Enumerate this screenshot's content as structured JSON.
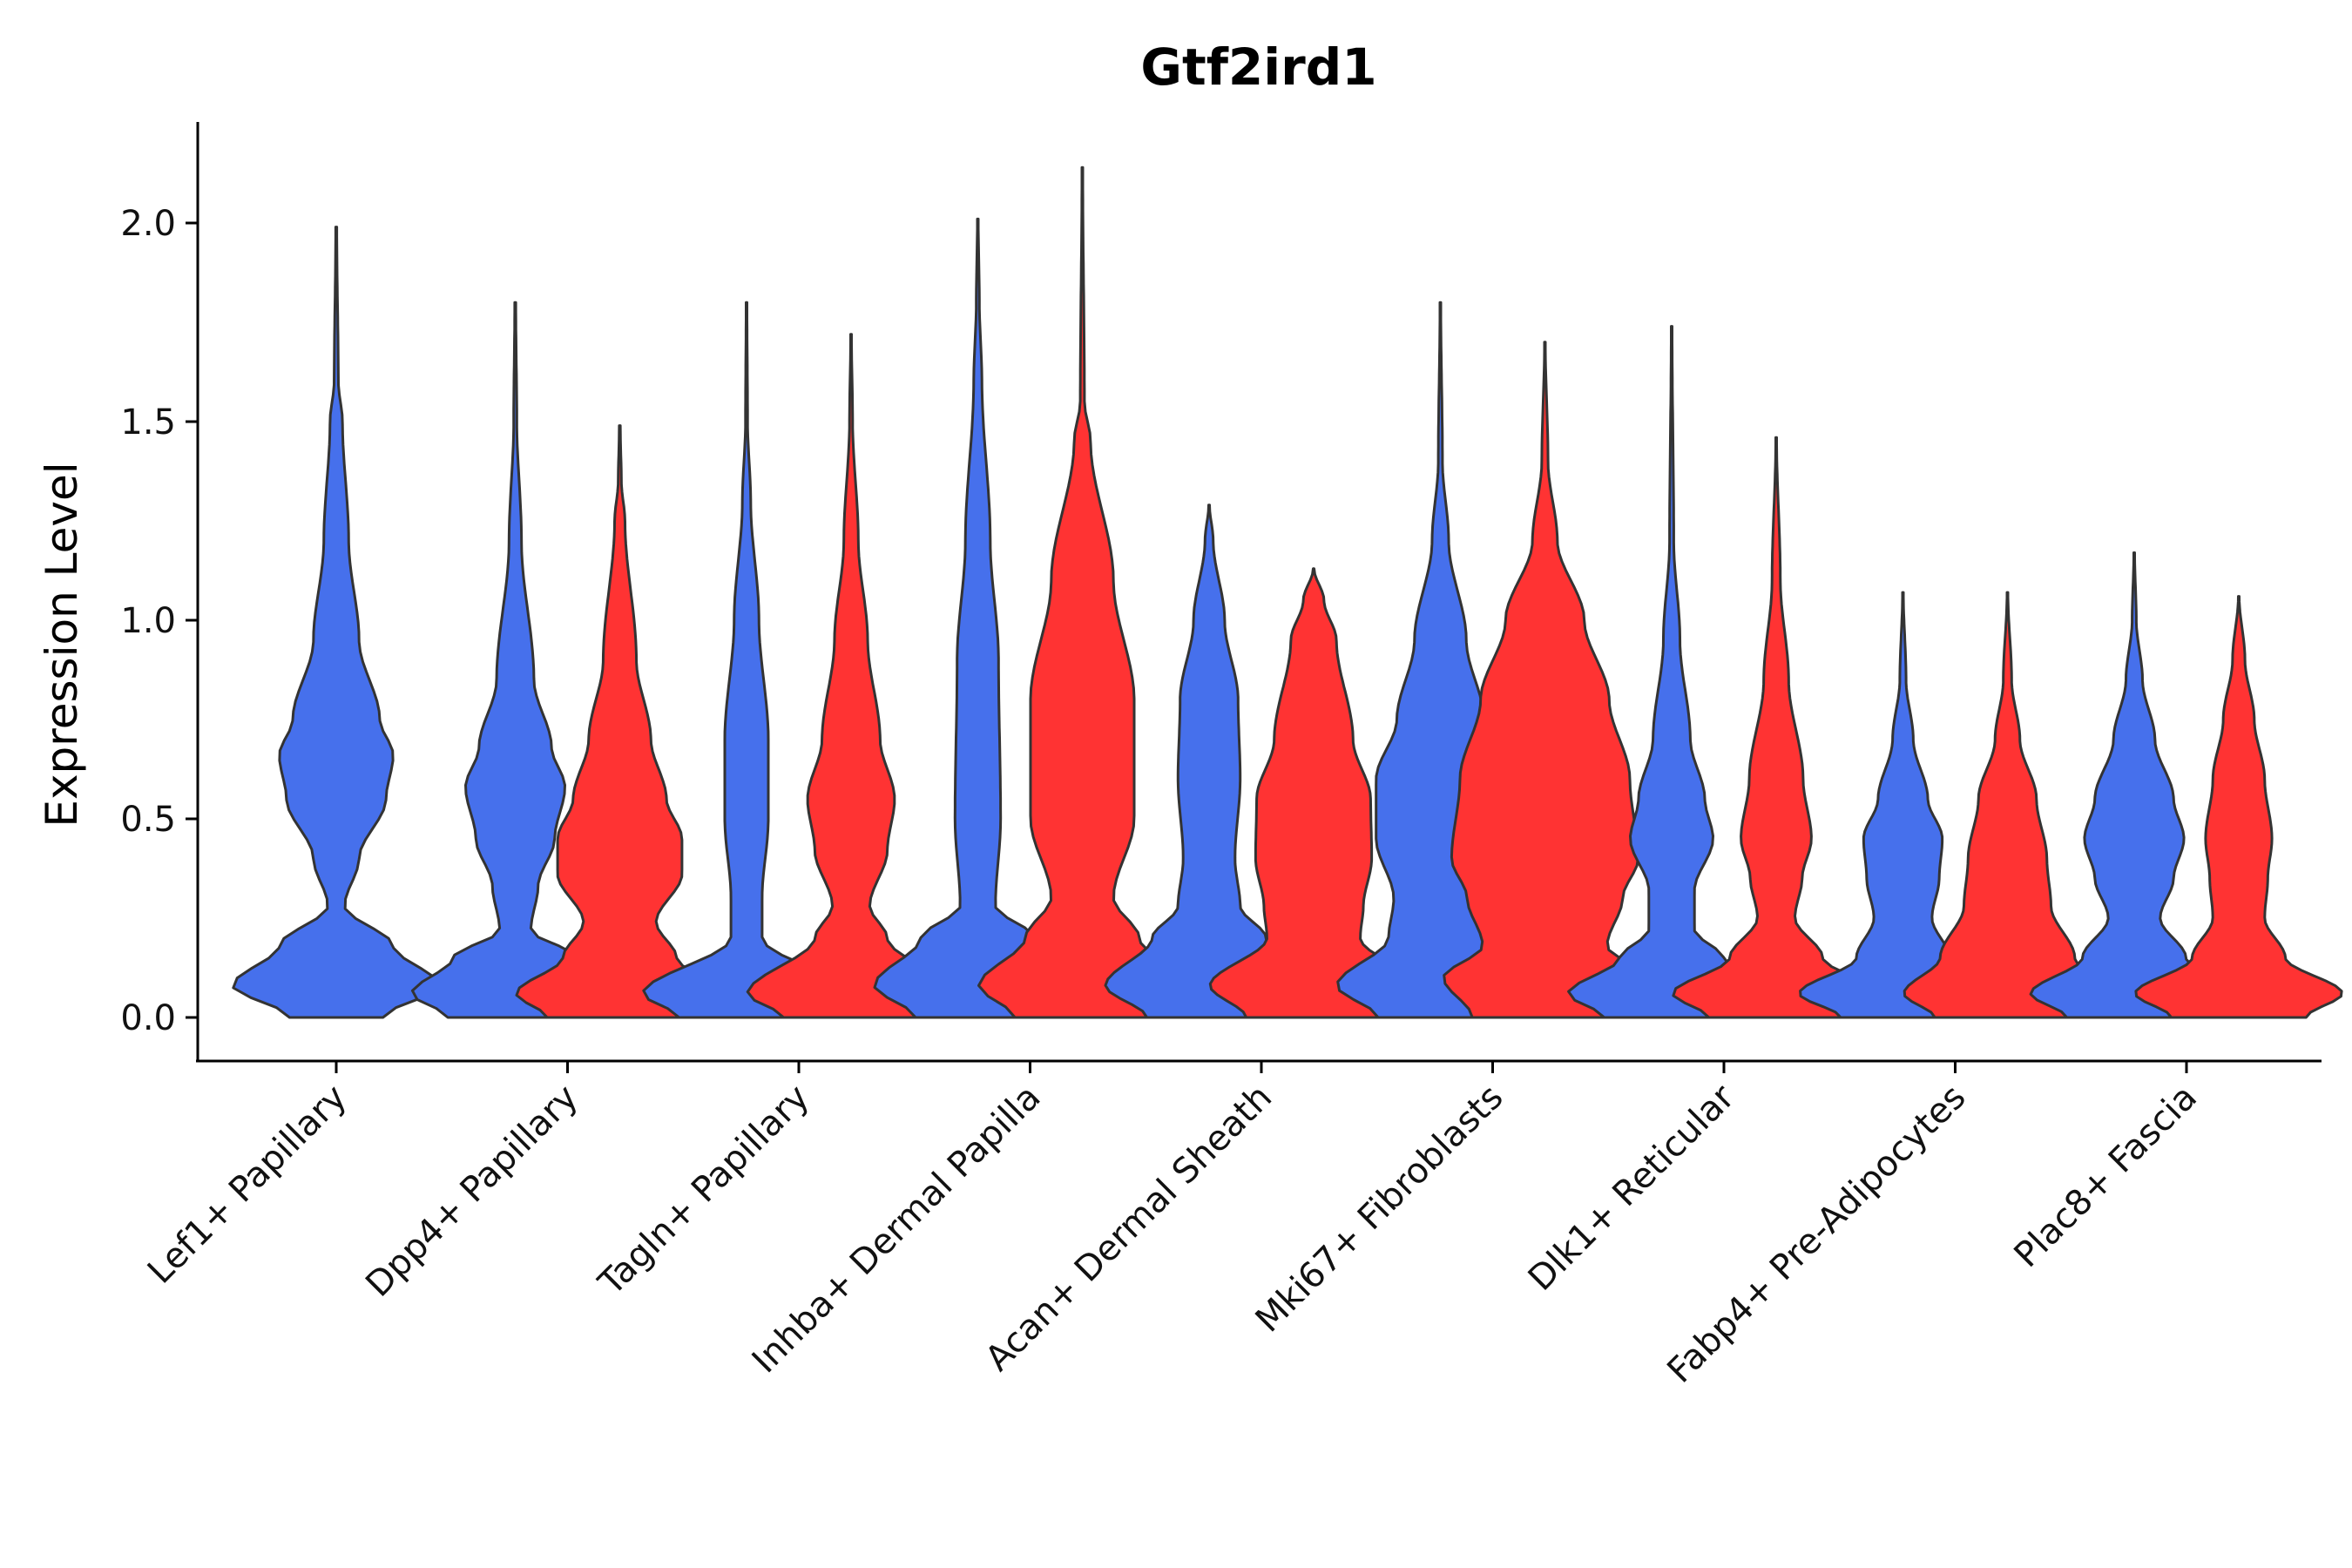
{
  "chart_data": {
    "type": "violin",
    "title": "Gtf2ird1",
    "xlabel": "",
    "ylabel": "Expression Level",
    "ylim": [
      -0.1,
      2.25
    ],
    "yticks": [
      "0.0",
      "0.5",
      "1.0",
      "1.5",
      "2.0"
    ],
    "colors": {
      "group1": "#4670ec",
      "group2": "#ff3333"
    },
    "categories": [
      {
        "label": "Lef1+ Papillary",
        "violins": [
          {
            "group": "group1",
            "max": 1.99,
            "density": [
              [
                0,
                0.45
              ],
              [
                0.08,
                1
              ],
              [
                0.18,
                0.55
              ],
              [
                0.28,
                0.08
              ],
              [
                0.4,
                0.22
              ],
              [
                0.55,
                0.48
              ],
              [
                0.66,
                0.55
              ],
              [
                0.75,
                0.42
              ],
              [
                0.95,
                0.22
              ],
              [
                1.2,
                0.12
              ],
              [
                1.5,
                0.06
              ],
              [
                1.6,
                0.02
              ],
              [
                1.99,
                0.005
              ]
            ]
          }
        ]
      },
      {
        "label": "Dpp4+ Papillary",
        "violins": [
          {
            "group": "group1",
            "max": 1.8,
            "density": [
              [
                0,
                0.65
              ],
              [
                0.06,
                1
              ],
              [
                0.15,
                0.6
              ],
              [
                0.22,
                0.15
              ],
              [
                0.33,
                0.22
              ],
              [
                0.45,
                0.38
              ],
              [
                0.58,
                0.48
              ],
              [
                0.68,
                0.35
              ],
              [
                0.85,
                0.18
              ],
              [
                1.2,
                0.06
              ],
              [
                1.5,
                0.015
              ],
              [
                1.8,
                0.005
              ]
            ]
          },
          {
            "group": "group2",
            "max": 1.49,
            "density": [
              [
                0,
                0.7
              ],
              [
                0.06,
                1
              ],
              [
                0.15,
                0.55
              ],
              [
                0.24,
                0.35
              ],
              [
                0.36,
                0.6
              ],
              [
                0.45,
                0.6
              ],
              [
                0.55,
                0.45
              ],
              [
                0.7,
                0.3
              ],
              [
                0.9,
                0.16
              ],
              [
                1.25,
                0.05
              ],
              [
                1.35,
                0.015
              ],
              [
                1.49,
                0.005
              ]
            ]
          }
        ]
      },
      {
        "label": "Tagln+ Papillary",
        "violins": [
          {
            "group": "group1",
            "max": 1.8,
            "density": [
              [
                0,
                0.65
              ],
              [
                0.06,
                1
              ],
              [
                0.2,
                0.15
              ],
              [
                0.3,
                0.15
              ],
              [
                0.5,
                0.21
              ],
              [
                0.7,
                0.21
              ],
              [
                1.0,
                0.12
              ],
              [
                1.3,
                0.04
              ],
              [
                1.5,
                0.01
              ],
              [
                1.8,
                0.004
              ]
            ]
          },
          {
            "group": "group2",
            "max": 1.72,
            "density": [
              [
                0,
                0.65
              ],
              [
                0.06,
                1
              ],
              [
                0.2,
                0.35
              ],
              [
                0.28,
                0.18
              ],
              [
                0.42,
                0.35
              ],
              [
                0.55,
                0.42
              ],
              [
                0.7,
                0.28
              ],
              [
                0.95,
                0.16
              ],
              [
                1.2,
                0.07
              ],
              [
                1.5,
                0.015
              ],
              [
                1.72,
                0.004
              ]
            ]
          }
        ]
      },
      {
        "label": "Inhba+ Dermal Papilla",
        "violins": [
          {
            "group": "group1",
            "max": 2.01,
            "density": [
              [
                0,
                0.6
              ],
              [
                0.08,
                1
              ],
              [
                0.2,
                0.55
              ],
              [
                0.28,
                0.17
              ],
              [
                0.5,
                0.22
              ],
              [
                0.9,
                0.2
              ],
              [
                1.2,
                0.12
              ],
              [
                1.6,
                0.04
              ],
              [
                1.8,
                0.015
              ],
              [
                2.01,
                0.004
              ]
            ]
          },
          {
            "group": "group2",
            "max": 2.14,
            "density": [
              [
                0,
                0.65
              ],
              [
                0.08,
                1
              ],
              [
                0.2,
                0.55
              ],
              [
                0.3,
                0.3
              ],
              [
                0.5,
                0.5
              ],
              [
                0.8,
                0.5
              ],
              [
                1.1,
                0.3
              ],
              [
                1.45,
                0.08
              ],
              [
                1.55,
                0.02
              ],
              [
                2.14,
                0.004
              ]
            ]
          }
        ]
      },
      {
        "label": "Acan+ Dermal Sheath",
        "violins": [
          {
            "group": "group1",
            "max": 1.29,
            "density": [
              [
                0,
                0.6
              ],
              [
                0.08,
                1
              ],
              [
                0.2,
                0.55
              ],
              [
                0.28,
                0.3
              ],
              [
                0.4,
                0.25
              ],
              [
                0.6,
                0.3
              ],
              [
                0.8,
                0.28
              ],
              [
                1.0,
                0.15
              ],
              [
                1.2,
                0.04
              ],
              [
                1.29,
                0.004
              ]
            ]
          },
          {
            "group": "group2",
            "max": 1.13,
            "density": [
              [
                0,
                0.65
              ],
              [
                0.08,
                1
              ],
              [
                0.2,
                0.45
              ],
              [
                0.28,
                0.48
              ],
              [
                0.4,
                0.56
              ],
              [
                0.55,
                0.55
              ],
              [
                0.7,
                0.38
              ],
              [
                0.95,
                0.22
              ],
              [
                1.05,
                0.1
              ],
              [
                1.13,
                0.004
              ]
            ]
          }
        ]
      },
      {
        "label": "Mki67+ Fibroblasts",
        "violins": [
          {
            "group": "group1",
            "max": 1.8,
            "density": [
              [
                0,
                0.6
              ],
              [
                0.08,
                1
              ],
              [
                0.2,
                0.5
              ],
              [
                0.3,
                0.45
              ],
              [
                0.45,
                0.62
              ],
              [
                0.6,
                0.62
              ],
              [
                0.75,
                0.42
              ],
              [
                0.95,
                0.25
              ],
              [
                1.2,
                0.08
              ],
              [
                1.4,
                0.02
              ],
              [
                1.8,
                0.004
              ]
            ]
          },
          {
            "group": "group2",
            "max": 1.7,
            "density": [
              [
                0,
                0.7
              ],
              [
                0.1,
                0.98
              ],
              [
                0.18,
                0.6
              ],
              [
                0.3,
                0.75
              ],
              [
                0.4,
                0.9
              ],
              [
                0.6,
                0.82
              ],
              [
                0.8,
                0.62
              ],
              [
                1.0,
                0.38
              ],
              [
                1.2,
                0.12
              ],
              [
                1.4,
                0.03
              ],
              [
                1.7,
                0.004
              ]
            ]
          }
        ]
      },
      {
        "label": "Dlk1+ Reticular",
        "violins": [
          {
            "group": "group1",
            "max": 1.74,
            "density": [
              [
                0,
                0.65
              ],
              [
                0.06,
                1
              ],
              [
                0.15,
                0.5
              ],
              [
                0.22,
                0.22
              ],
              [
                0.32,
                0.22
              ],
              [
                0.45,
                0.4
              ],
              [
                0.55,
                0.32
              ],
              [
                0.7,
                0.18
              ],
              [
                0.95,
                0.08
              ],
              [
                1.2,
                0.02
              ],
              [
                1.74,
                0.004
              ]
            ]
          },
          {
            "group": "group2",
            "max": 1.46,
            "density": [
              [
                0,
                0.65
              ],
              [
                0.06,
                1
              ],
              [
                0.15,
                0.45
              ],
              [
                0.25,
                0.18
              ],
              [
                0.35,
                0.25
              ],
              [
                0.45,
                0.34
              ],
              [
                0.6,
                0.26
              ],
              [
                0.85,
                0.12
              ],
              [
                1.1,
                0.04
              ],
              [
                1.46,
                0.004
              ]
            ]
          }
        ]
      },
      {
        "label": "Fabp4+ Pre-Adipocytes",
        "violins": [
          {
            "group": "group1",
            "max": 1.07,
            "density": [
              [
                0,
                0.6
              ],
              [
                0.06,
                1
              ],
              [
                0.15,
                0.45
              ],
              [
                0.25,
                0.28
              ],
              [
                0.35,
                0.35
              ],
              [
                0.45,
                0.38
              ],
              [
                0.55,
                0.24
              ],
              [
                0.7,
                0.1
              ],
              [
                0.85,
                0.03
              ],
              [
                1.07,
                0.004
              ]
            ]
          },
          {
            "group": "group2",
            "max": 1.07,
            "density": [
              [
                0,
                0.7
              ],
              [
                0.06,
                1
              ],
              [
                0.15,
                0.65
              ],
              [
                0.28,
                0.42
              ],
              [
                0.4,
                0.38
              ],
              [
                0.55,
                0.28
              ],
              [
                0.7,
                0.12
              ],
              [
                0.85,
                0.04
              ],
              [
                1.07,
                0.004
              ]
            ]
          }
        ]
      },
      {
        "label": "Plac8+ Fascia",
        "violins": [
          {
            "group": "group1",
            "max": 1.17,
            "density": [
              [
                0,
                0.65
              ],
              [
                0.06,
                1
              ],
              [
                0.15,
                0.5
              ],
              [
                0.25,
                0.25
              ],
              [
                0.35,
                0.38
              ],
              [
                0.45,
                0.48
              ],
              [
                0.55,
                0.38
              ],
              [
                0.7,
                0.2
              ],
              [
                0.85,
                0.08
              ],
              [
                1.0,
                0.02
              ],
              [
                1.17,
                0.004
              ]
            ]
          },
          {
            "group": "group2",
            "max": 1.06,
            "density": [
              [
                0,
                0.65
              ],
              [
                0.06,
                1
              ],
              [
                0.15,
                0.45
              ],
              [
                0.25,
                0.25
              ],
              [
                0.35,
                0.28
              ],
              [
                0.45,
                0.32
              ],
              [
                0.6,
                0.25
              ],
              [
                0.75,
                0.15
              ],
              [
                0.9,
                0.06
              ],
              [
                1.06,
                0.004
              ]
            ]
          }
        ]
      }
    ]
  }
}
